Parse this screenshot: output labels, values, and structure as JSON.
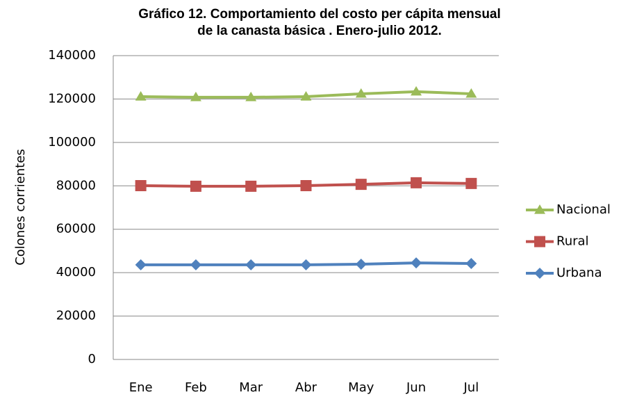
{
  "chart_data": {
    "type": "line",
    "title": [
      "Gráfico 12. Comportamiento del costo per cápita mensual",
      "de la canasta básica . Enero-julio 2012."
    ],
    "y_label": "Colones corrientes",
    "categories": [
      "Ene",
      "Feb",
      "Mar",
      "Abr",
      "May",
      "Jun",
      "Jul"
    ],
    "series": [
      {
        "name": "Nacional",
        "color": "#9bbb59",
        "marker": "triangle",
        "values": [
          121100,
          120800,
          120800,
          121100,
          122400,
          123400,
          122400
        ]
      },
      {
        "name": "Rural",
        "color": "#c0504d",
        "marker": "square",
        "values": [
          80100,
          79800,
          79800,
          80100,
          80700,
          81400,
          81100
        ]
      },
      {
        "name": "Urbana",
        "color": "#4f81bd",
        "marker": "diamond",
        "values": [
          43600,
          43600,
          43600,
          43600,
          43900,
          44500,
          44200
        ]
      }
    ],
    "ylim": [
      0,
      140000
    ],
    "yticks": [
      0,
      20000,
      40000,
      60000,
      80000,
      100000,
      120000,
      140000
    ],
    "grid": true,
    "legend": "right"
  }
}
